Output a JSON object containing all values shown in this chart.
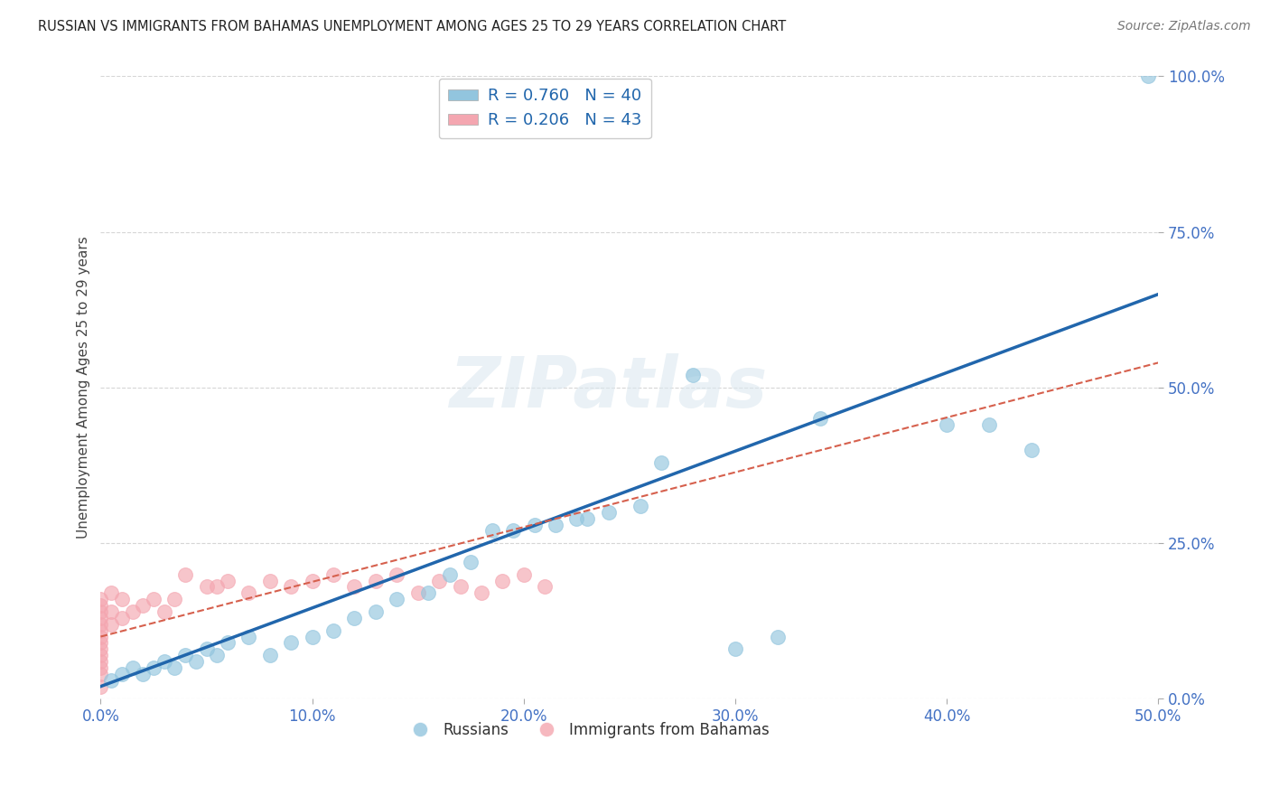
{
  "title": "RUSSIAN VS IMMIGRANTS FROM BAHAMAS UNEMPLOYMENT AMONG AGES 25 TO 29 YEARS CORRELATION CHART",
  "source": "Source: ZipAtlas.com",
  "ylabel_label": "Unemployment Among Ages 25 to 29 years",
  "xlim": [
    0.0,
    0.5
  ],
  "ylim": [
    0.0,
    1.0
  ],
  "x_tick_vals": [
    0.0,
    0.1,
    0.2,
    0.3,
    0.4,
    0.5
  ],
  "x_tick_labels": [
    "0.0%",
    "10.0%",
    "20.0%",
    "30.0%",
    "40.0%",
    "50.0%"
  ],
  "y_tick_vals": [
    0.0,
    0.25,
    0.5,
    0.75,
    1.0
  ],
  "y_tick_labels": [
    "0.0%",
    "25.0%",
    "50.0%",
    "75.0%",
    "100.0%"
  ],
  "watermark_text": "ZIPatlas",
  "russian_color": "#92c5de",
  "bahamas_color": "#f4a6b0",
  "russian_line_color": "#2166ac",
  "bahamas_line_color": "#d6604d",
  "background_color": "#ffffff",
  "grid_color": "#cccccc",
  "title_color": "#222222",
  "tick_color": "#4472c4",
  "legend_text_color": "#2166ac",
  "russians_x": [
    0.005,
    0.01,
    0.015,
    0.02,
    0.025,
    0.03,
    0.035,
    0.04,
    0.045,
    0.05,
    0.055,
    0.06,
    0.07,
    0.08,
    0.09,
    0.1,
    0.11,
    0.12,
    0.13,
    0.14,
    0.155,
    0.165,
    0.175,
    0.185,
    0.195,
    0.205,
    0.215,
    0.225,
    0.23,
    0.24,
    0.255,
    0.265,
    0.28,
    0.3,
    0.32,
    0.34,
    0.4,
    0.42,
    0.44,
    0.495
  ],
  "russians_y": [
    0.03,
    0.04,
    0.05,
    0.04,
    0.05,
    0.06,
    0.05,
    0.07,
    0.06,
    0.08,
    0.07,
    0.09,
    0.1,
    0.07,
    0.09,
    0.1,
    0.11,
    0.13,
    0.14,
    0.16,
    0.17,
    0.2,
    0.22,
    0.27,
    0.27,
    0.28,
    0.28,
    0.29,
    0.29,
    0.3,
    0.31,
    0.38,
    0.52,
    0.08,
    0.1,
    0.45,
    0.44,
    0.44,
    0.4,
    1.0
  ],
  "bahamas_x": [
    0.0,
    0.0,
    0.0,
    0.0,
    0.0,
    0.0,
    0.0,
    0.0,
    0.0,
    0.0,
    0.0,
    0.0,
    0.0,
    0.0,
    0.005,
    0.005,
    0.005,
    0.01,
    0.01,
    0.015,
    0.02,
    0.025,
    0.03,
    0.035,
    0.04,
    0.05,
    0.055,
    0.06,
    0.07,
    0.08,
    0.09,
    0.1,
    0.11,
    0.12,
    0.13,
    0.14,
    0.15,
    0.16,
    0.17,
    0.18,
    0.19,
    0.2,
    0.21
  ],
  "bahamas_y": [
    0.02,
    0.04,
    0.05,
    0.06,
    0.07,
    0.08,
    0.09,
    0.1,
    0.11,
    0.12,
    0.13,
    0.14,
    0.15,
    0.16,
    0.12,
    0.14,
    0.17,
    0.13,
    0.16,
    0.14,
    0.15,
    0.16,
    0.14,
    0.16,
    0.2,
    0.18,
    0.18,
    0.19,
    0.17,
    0.19,
    0.18,
    0.19,
    0.2,
    0.18,
    0.19,
    0.2,
    0.17,
    0.19,
    0.18,
    0.17,
    0.19,
    0.2,
    0.18
  ],
  "russian_line_x0": 0.0,
  "russian_line_y0": 0.02,
  "russian_line_x1": 0.5,
  "russian_line_y1": 0.65,
  "bahamas_line_x0": 0.0,
  "bahamas_line_y0": 0.1,
  "bahamas_line_x1": 0.5,
  "bahamas_line_y1": 0.54
}
